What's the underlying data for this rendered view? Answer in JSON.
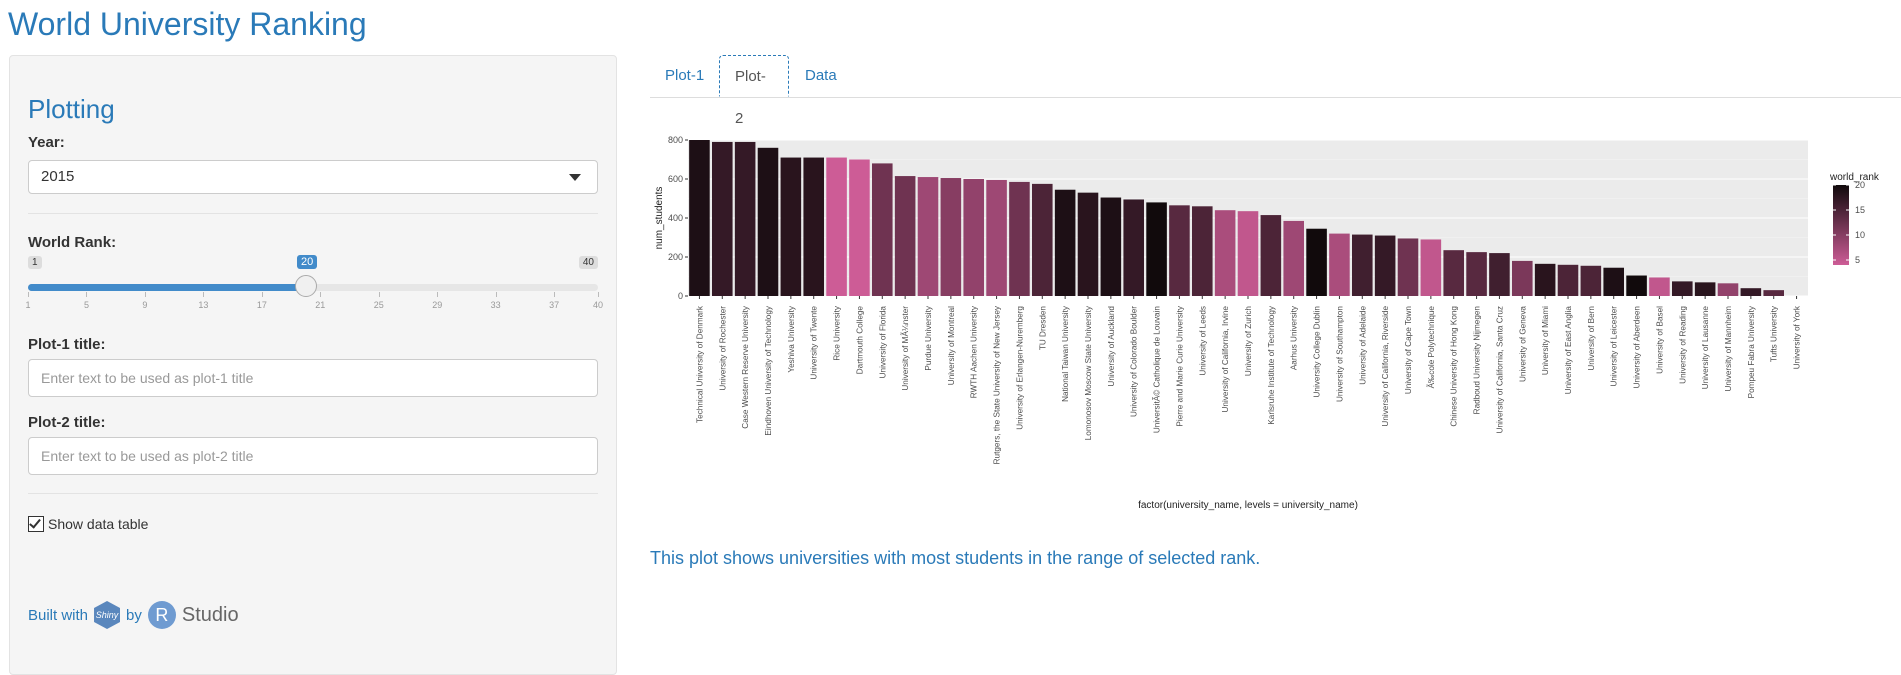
{
  "app": {
    "title": "World University Ranking"
  },
  "sidebar": {
    "heading": "Plotting",
    "year_label": "Year:",
    "year_value": "2015",
    "rank_label": "World Rank:",
    "rank_slider": {
      "min": 1,
      "max": 40,
      "value": 20,
      "ticks": [
        1,
        5,
        9,
        13,
        17,
        21,
        25,
        29,
        33,
        37,
        40
      ]
    },
    "plot1_label": "Plot-1 title:",
    "plot1_placeholder": "Enter text to be used as plot-1 title",
    "plot2_label": "Plot-2 title:",
    "plot2_placeholder": "Enter text to be used as plot-2 title",
    "show_table_label": "Show data table",
    "built_with": "Built with",
    "by": "by",
    "shiny": "Shiny",
    "r": "R",
    "studio": "Studio"
  },
  "tabs": [
    {
      "label": "Plot-1"
    },
    {
      "label": "Plot-2"
    },
    {
      "label": "Data"
    }
  ],
  "caption": "This plot shows universities with most students in the range of selected rank.",
  "chart_data": {
    "type": "bar",
    "title": "",
    "xlabel": "factor(university_name, levels = university_name)",
    "ylabel": "num_students",
    "ylim": [
      0,
      800
    ],
    "yticks": [
      0,
      200,
      400,
      600,
      800
    ],
    "legend_title": "world_rank",
    "legend_ticks": [
      20,
      15,
      10,
      5
    ],
    "legend_position": "right",
    "colors": {
      "rank_low": "#cd5c96",
      "rank_high": "#110a0c",
      "panel_bg": "#ebebeb",
      "grid": "#ffffff"
    },
    "categories": [
      "Technical University of Denmark",
      "University of Rochester",
      "Case Western Reserve University",
      "Eindhoven University of Technology",
      "Yeshiva University",
      "University of Twente",
      "Rice University",
      "Dartmouth College",
      "University of Florida",
      "University of MÃ¼nster",
      "Purdue University",
      "University of Montreal",
      "RWTH Aachen University",
      "Rutgers, the State University of New Jersey",
      "University of Erlangen-Nuremberg",
      "TU Dresden",
      "National Taiwan University",
      "Lomonosov Moscow State University",
      "University of Auckland",
      "University of Colorado Boulder",
      "UniversitÃ© Catholique de Louvain",
      "Pierre and Marie Curie University",
      "University of Leeds",
      "University of California, Irvine",
      "University of Zurich",
      "Karlsruhe Institute of Technology",
      "Aarhus University",
      "University College Dublin",
      "University of Southampton",
      "University of Adelaide",
      "University of California, Riverside",
      "University of Cape Town",
      "Ã‰cole Polytechnique",
      "Chinese University of Hong Kong",
      "Radboud University Nijmegen",
      "University of California, Santa Cruz",
      "University of Geneva",
      "University of Miami",
      "University of East Anglia",
      "University of Bern",
      "University of Leicester",
      "University of Aberdeen",
      "University of Basel",
      "University of Reading",
      "University of Lausanne",
      "University of Mannheim",
      "Pompeu Fabra University",
      "Tufts University",
      "University of York"
    ],
    "values": [
      800,
      790,
      790,
      760,
      710,
      710,
      710,
      700,
      680,
      615,
      610,
      605,
      600,
      595,
      585,
      575,
      545,
      530,
      505,
      495,
      480,
      465,
      460,
      440,
      435,
      415,
      385,
      345,
      320,
      315,
      310,
      295,
      290,
      235,
      225,
      220,
      180,
      165,
      160,
      155,
      145,
      105,
      95,
      75,
      70,
      65,
      40,
      30,
      0
    ],
    "world_rank": [
      19,
      17,
      17,
      19,
      18,
      18,
      4,
      4,
      12,
      12,
      8,
      10,
      9,
      8,
      12,
      15,
      19,
      18,
      19,
      17,
      20,
      14,
      15,
      7,
      5,
      15,
      8,
      20,
      7,
      16,
      17,
      12,
      5,
      14,
      14,
      16,
      11,
      18,
      15,
      15,
      19,
      20,
      5,
      17,
      18,
      9,
      17,
      14,
      10
    ]
  }
}
